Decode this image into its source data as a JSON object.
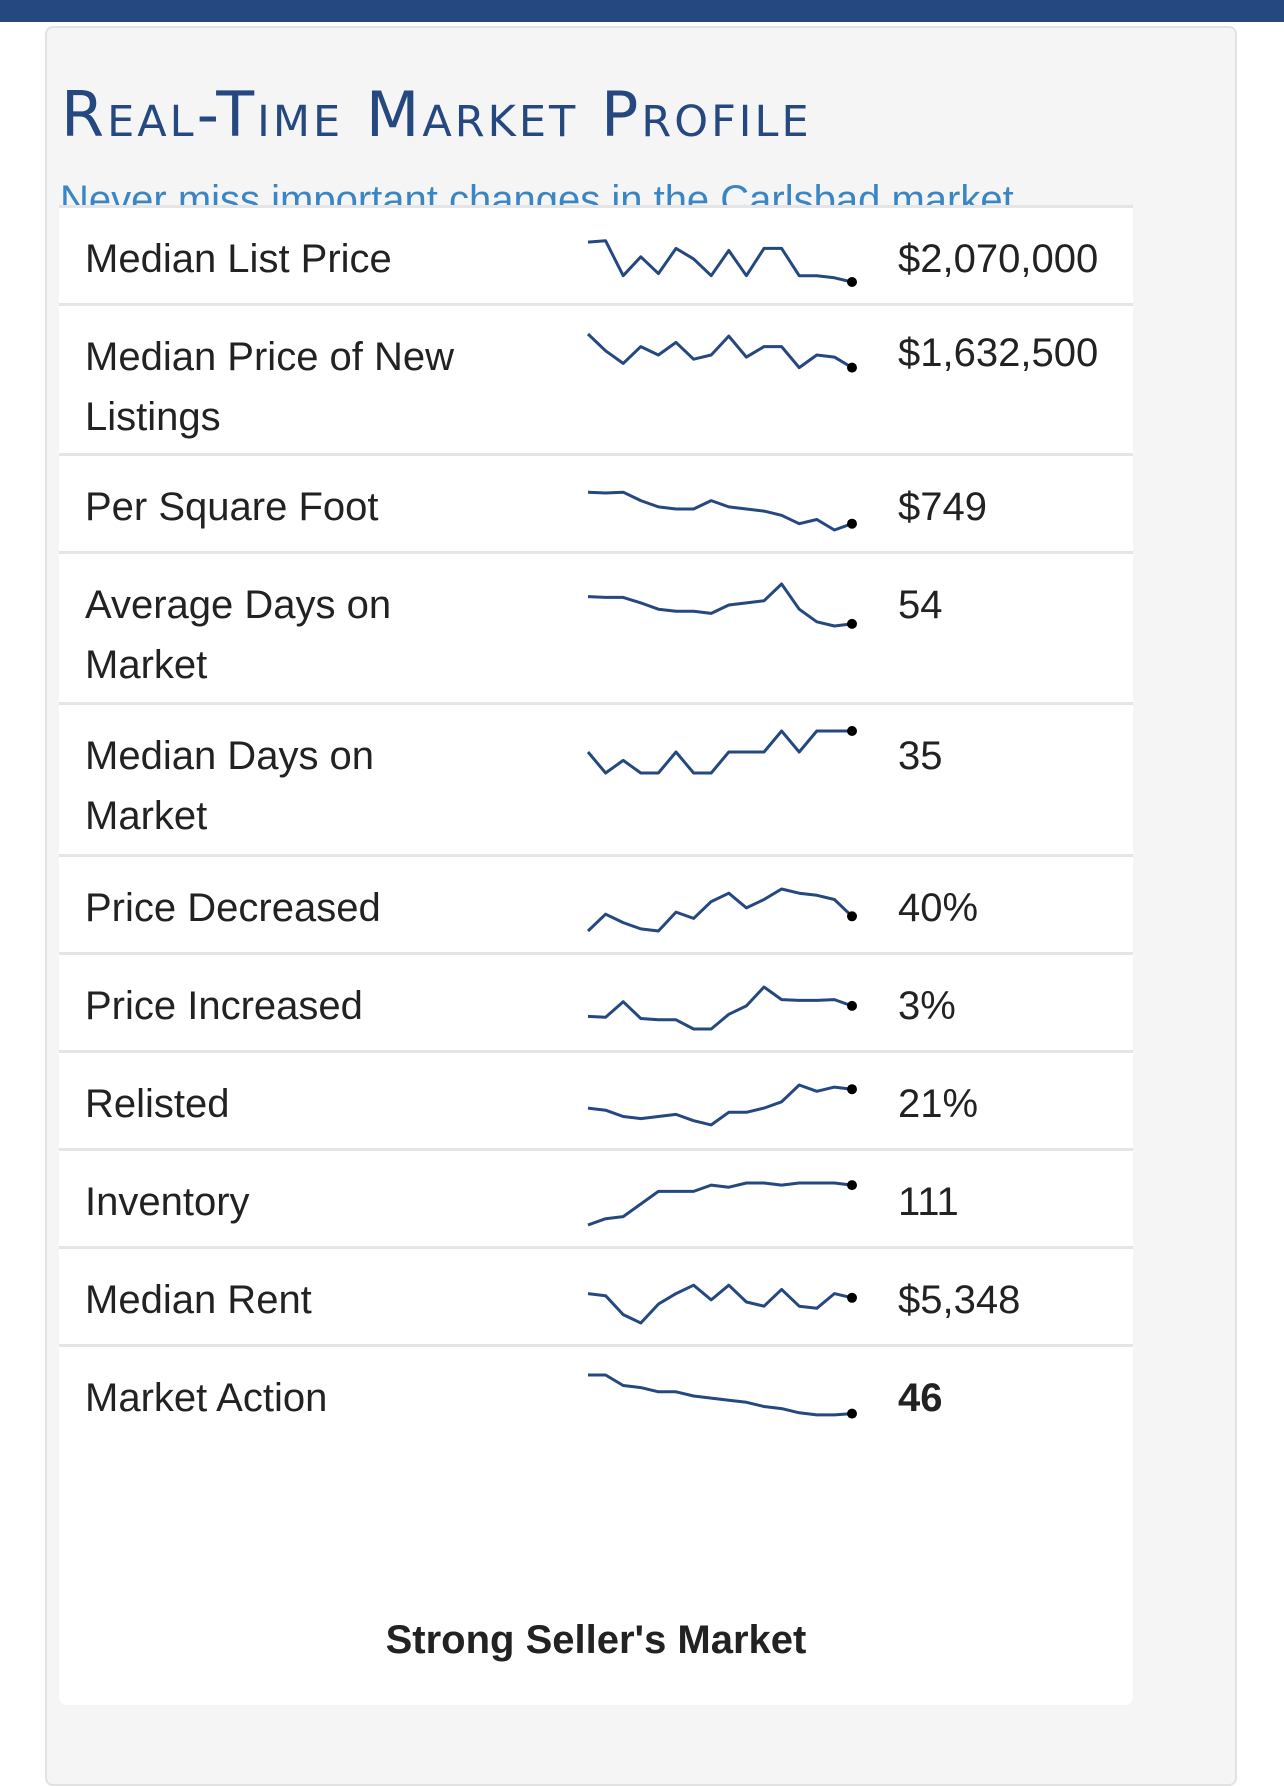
{
  "header": {
    "title": "Real-Time Market Profile",
    "subtitle": "Never miss important changes in the Carlsbad market."
  },
  "colors": {
    "brand_blue": "#24487f",
    "link_blue": "#3a86c4",
    "sparkline": "#24487f"
  },
  "rows": [
    {
      "label": "Median List Price",
      "value": "$2,070,000",
      "trend": [
        0.95,
        0.98,
        0.15,
        0.6,
        0.2,
        0.8,
        0.55,
        0.15,
        0.75,
        0.15,
        0.8,
        0.8,
        0.15,
        0.15,
        0.1,
        0.0
      ]
    },
    {
      "label": "Median Price of New Listings",
      "value": "$1,632,500",
      "trend": [
        1.0,
        0.6,
        0.3,
        0.7,
        0.5,
        0.8,
        0.4,
        0.5,
        0.95,
        0.45,
        0.7,
        0.7,
        0.2,
        0.5,
        0.45,
        0.2
      ]
    },
    {
      "label": "Per Square Foot",
      "value": "$749",
      "trend": [
        0.9,
        0.88,
        0.9,
        0.7,
        0.55,
        0.5,
        0.5,
        0.7,
        0.55,
        0.5,
        0.45,
        0.35,
        0.15,
        0.25,
        0.0,
        0.15
      ]
    },
    {
      "label": "Average Days on Market",
      "value": "54",
      "trend": [
        0.7,
        0.68,
        0.68,
        0.55,
        0.4,
        0.35,
        0.35,
        0.3,
        0.5,
        0.55,
        0.6,
        1.0,
        0.4,
        0.1,
        0.0,
        0.05
      ]
    },
    {
      "label": "Median Days on Market",
      "value": "35",
      "trend": [
        0.5,
        0.0,
        0.3,
        0.0,
        0.0,
        0.5,
        0.0,
        0.0,
        0.5,
        0.5,
        0.5,
        1.0,
        0.5,
        1.0,
        1.0,
        1.0
      ]
    },
    {
      "label": "Price Decreased",
      "value": "40%",
      "trend": [
        0.0,
        0.4,
        0.2,
        0.05,
        0.0,
        0.45,
        0.3,
        0.7,
        0.9,
        0.55,
        0.75,
        1.0,
        0.9,
        0.85,
        0.75,
        0.35
      ]
    },
    {
      "label": "Price Increased",
      "value": "3%",
      "trend": [
        0.3,
        0.28,
        0.65,
        0.25,
        0.22,
        0.22,
        0.0,
        0.0,
        0.35,
        0.55,
        1.0,
        0.7,
        0.68,
        0.68,
        0.7,
        0.55
      ]
    },
    {
      "label": "Relisted",
      "value": "21%",
      "trend": [
        0.45,
        0.4,
        0.25,
        0.2,
        0.25,
        0.3,
        0.15,
        0.05,
        0.35,
        0.35,
        0.45,
        0.6,
        1.0,
        0.85,
        0.95,
        0.9
      ]
    },
    {
      "label": "Inventory",
      "value": "111",
      "trend": [
        0.0,
        0.15,
        0.2,
        0.5,
        0.8,
        0.8,
        0.8,
        0.95,
        0.9,
        1.0,
        1.0,
        0.95,
        1.0,
        1.0,
        1.0,
        0.95
      ]
    },
    {
      "label": "Median Rent",
      "value": "$5,348",
      "trend": [
        0.7,
        0.65,
        0.2,
        0.0,
        0.45,
        0.7,
        0.9,
        0.55,
        0.9,
        0.5,
        0.4,
        0.8,
        0.4,
        0.35,
        0.7,
        0.6
      ]
    },
    {
      "label": "Market Action",
      "value": "46",
      "trend": [
        1.0,
        1.0,
        0.75,
        0.7,
        0.6,
        0.6,
        0.5,
        0.45,
        0.4,
        0.35,
        0.25,
        0.2,
        0.1,
        0.05,
        0.05,
        0.08
      ]
    }
  ],
  "market_status": "Strong Seller's Market"
}
